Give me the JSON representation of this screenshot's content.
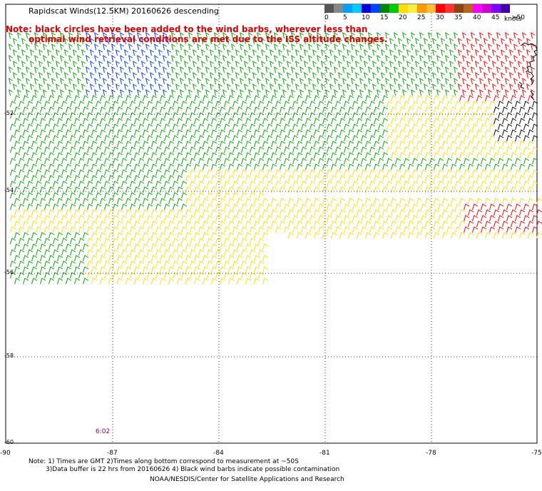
{
  "title": "Rapidscat Winds(12.5KM) 20160626 descending",
  "note_line1": "Note: black circles have been added to the wind barbs, wherever less than",
  "note_line2": "optimal wind retrieval conditions are met due to the ISS altitude changes.",
  "legend": {
    "colors": [
      "#555555",
      "#888888",
      "#00a0ff",
      "#00ccff",
      "#0000dd",
      "#0044ff",
      "#008800",
      "#00cc00",
      "#ffdd00",
      "#ffee44",
      "#ff9900",
      "#ffbb33",
      "#ff0000",
      "#ff3333",
      "#8b4513",
      "#b5651d",
      "#ff00ff",
      "#cc00cc",
      "#8000ff",
      "#4000aa"
    ],
    "labels": [
      "0",
      "5",
      "10",
      "15",
      "20",
      "25",
      "30",
      "35",
      "40",
      "45",
      ">50"
    ],
    "unit": "knots"
  },
  "x_ticks": [
    "-90",
    "-87",
    "-84",
    "-81",
    "-78",
    "-75"
  ],
  "y_ticks": [
    "-52",
    "-54",
    "-56",
    "-58",
    "-60"
  ],
  "time_label": "6:02",
  "footer": {
    "line1": "Note: 1) Times are GMT 2)Times along bottom correspond to measurement at ~50S",
    "line2": "3)Data buffer is 22 hrs from 20160626 4) Black wind barbs indicate possible contamination",
    "line3": "NOAA/NESDIS/Center for Satellite Applications and Research"
  },
  "colors": {
    "note": "#e00000",
    "grid": "#000000",
    "slow": "#0044ff",
    "light": "#00aa00",
    "moderate": "#ffdd00",
    "fresh": "#ff9900",
    "strong": "#ff0000",
    "gale": "#cc00cc",
    "contaminated": "#000000"
  }
}
